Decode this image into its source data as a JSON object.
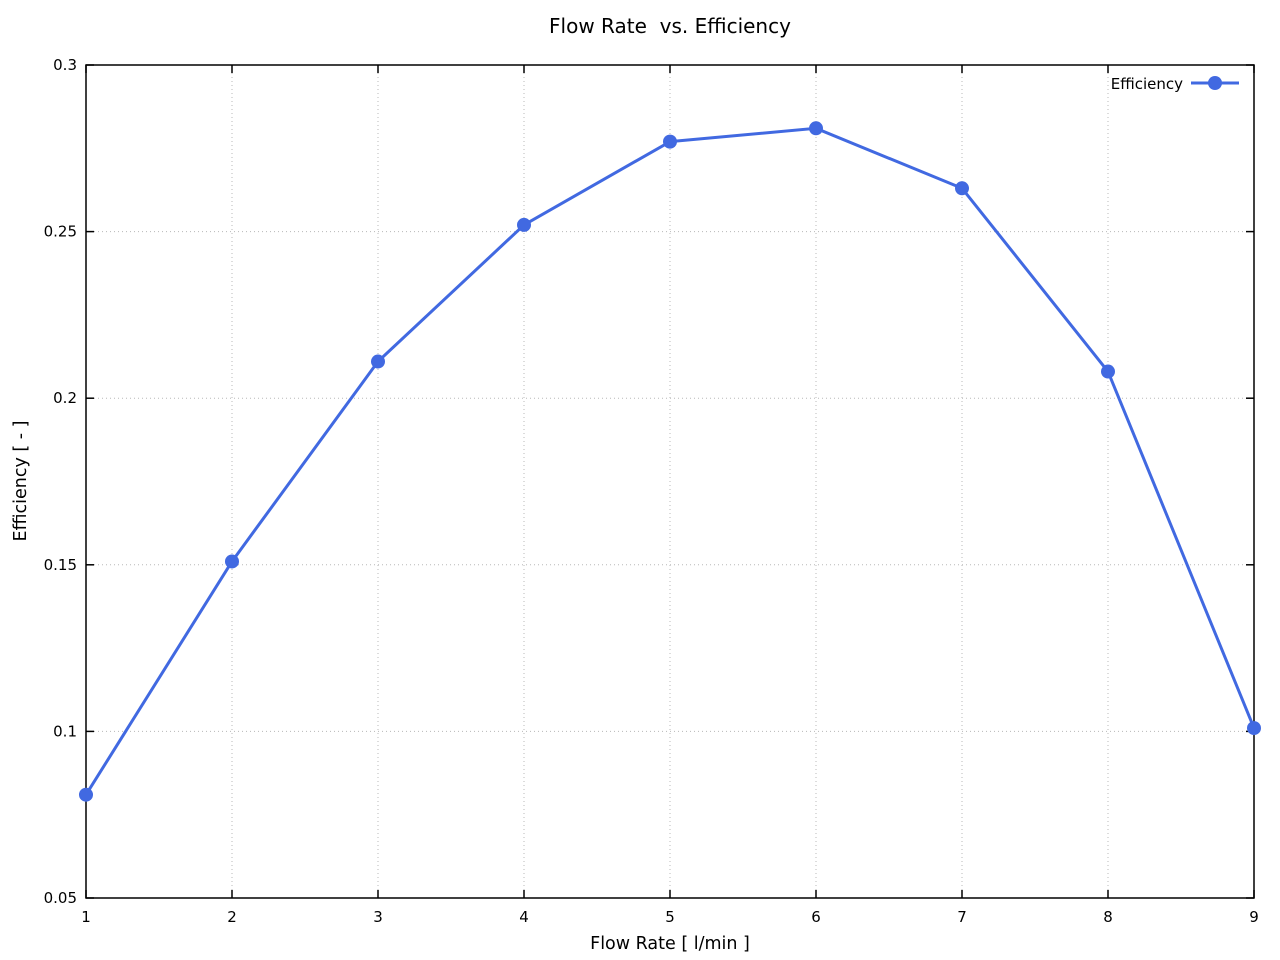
{
  "chart_data": {
    "type": "line",
    "title": "Flow Rate  vs. Efficiency",
    "xlabel": "Flow Rate [ l/min ]",
    "ylabel": "Efficiency [ - ]",
    "x": [
      1,
      2,
      3,
      4,
      5,
      6,
      7,
      8,
      9
    ],
    "series": [
      {
        "name": "Efficiency",
        "color": "#4169e1",
        "marker": "circle",
        "values": [
          0.081,
          0.151,
          0.211,
          0.252,
          0.277,
          0.281,
          0.263,
          0.208,
          0.101
        ]
      }
    ],
    "xlim": [
      1,
      9
    ],
    "ylim": [
      0.05,
      0.3
    ],
    "xticks": [
      1,
      2,
      3,
      4,
      5,
      6,
      7,
      8,
      9
    ],
    "xtick_labels": [
      "1",
      "2",
      "3",
      "4",
      "5",
      "6",
      "7",
      "8",
      "9"
    ],
    "yticks": [
      0.05,
      0.1,
      0.15,
      0.2,
      0.25,
      0.3
    ],
    "ytick_labels": [
      "0.05",
      "0.1",
      "0.15",
      "0.2",
      "0.25",
      "0.3"
    ],
    "grid": true,
    "grid_style": "dotted",
    "legend_position": "top-right-inside"
  },
  "colors": {
    "series": "#4169e1",
    "grid": "#b8b8b8",
    "frame": "#000000",
    "text": "#000000",
    "background": "#ffffff"
  }
}
